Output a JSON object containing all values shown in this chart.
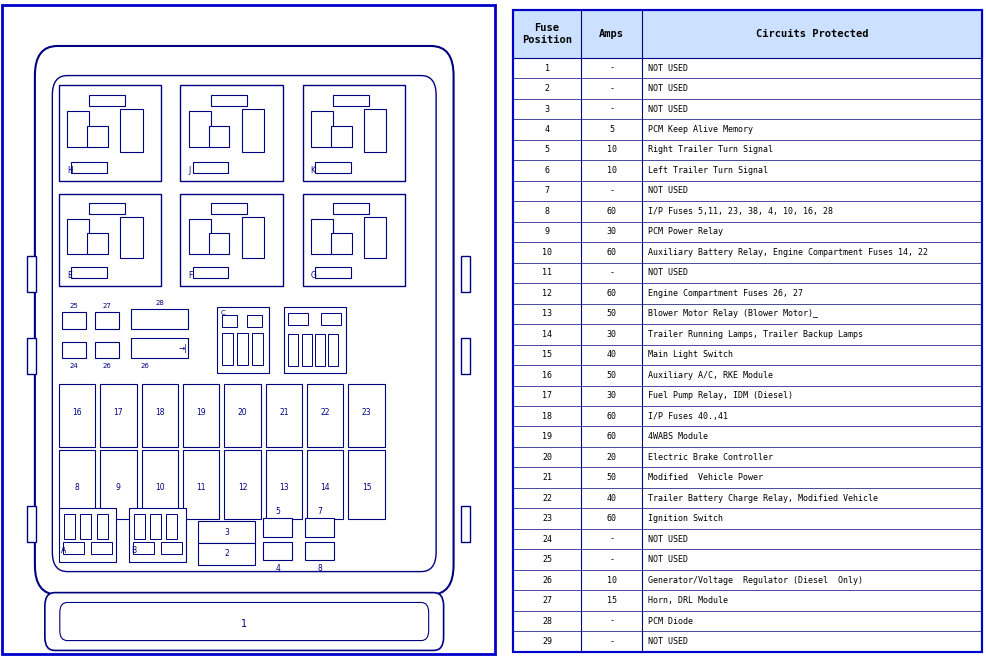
{
  "table": {
    "headers": [
      "Fuse\nPosition",
      "Amps",
      "Circuits Protected"
    ],
    "rows": [
      [
        "1",
        "-",
        "NOT USED"
      ],
      [
        "2",
        "-",
        "NOT USED"
      ],
      [
        "3",
        "-",
        "NOT USED"
      ],
      [
        "4",
        "5",
        "PCM Keep Alive Memory"
      ],
      [
        "5",
        "10",
        "Right Trailer Turn Signal"
      ],
      [
        "6",
        "10",
        "Left Trailer Turn Signal"
      ],
      [
        "7",
        "-",
        "NOT USED"
      ],
      [
        "8",
        "60",
        "I/P Fuses 5,11, 23, 38, 4, 10, 16, 28"
      ],
      [
        "9",
        "30",
        "PCM Power Relay"
      ],
      [
        "10",
        "60",
        "Auxiliary Battery Relay, Engine Compartment Fuses 14, 22"
      ],
      [
        "11",
        "-",
        "NOT USED"
      ],
      [
        "12",
        "60",
        "Engine Compartment Fuses 26, 27"
      ],
      [
        "13",
        "50",
        "Blower Motor Relay (Blower Motor)_"
      ],
      [
        "14",
        "30",
        "Trailer Running Lamps, Trailer Backup Lamps"
      ],
      [
        "15",
        "40",
        "Main Light Switch"
      ],
      [
        "16",
        "50",
        "Auxiliary A/C, RKE Module"
      ],
      [
        "17",
        "30",
        "Fuel Pump Relay, IDM (Diesel)"
      ],
      [
        "18",
        "60",
        "I/P Fuses 40.,41"
      ],
      [
        "19",
        "60",
        "4WABS Module"
      ],
      [
        "20",
        "20",
        "Electric Brake Controller"
      ],
      [
        "21",
        "50",
        "Modified  Vehicle Power"
      ],
      [
        "22",
        "40",
        "Trailer Battery Charge Relay, Modified Vehicle"
      ],
      [
        "23",
        "60",
        "Ignition Switch"
      ],
      [
        "24",
        "-",
        "NOT USED"
      ],
      [
        "25",
        "-",
        "NOT USED"
      ],
      [
        "26",
        "10",
        "Generator/Voltage  Regulator (Diesel  Only)"
      ],
      [
        "27",
        "15",
        "Horn, DRL Module"
      ],
      [
        "28",
        "-",
        "PCM Diode"
      ],
      [
        "29",
        "-",
        "NOT USED"
      ]
    ]
  },
  "border_color": "#0000cc",
  "diagram_line_color": "#000080",
  "header_bg": "#cce0ff"
}
